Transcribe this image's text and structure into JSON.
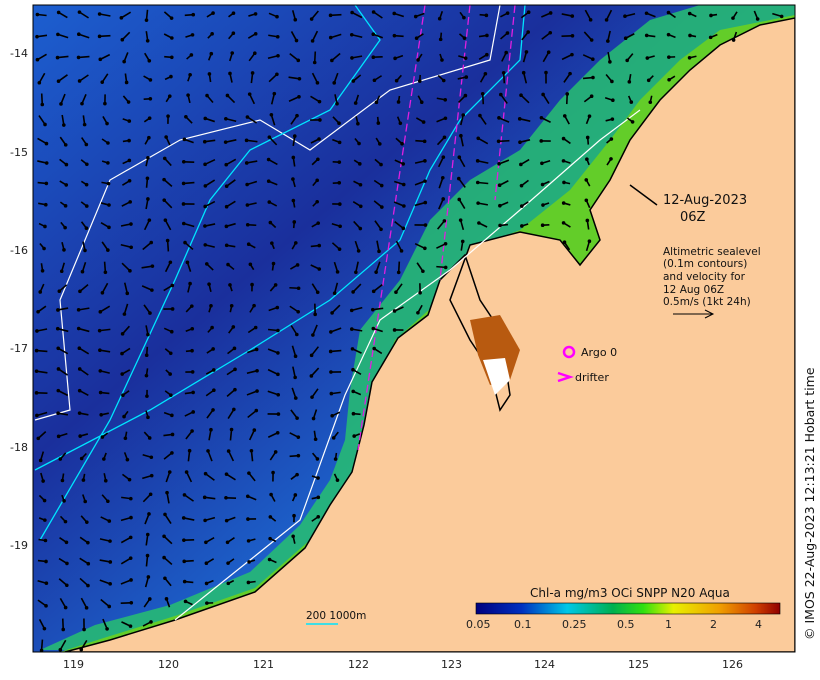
{
  "map": {
    "date_line1": "12-Aug-2023",
    "date_line2": "06Z",
    "info_lines": [
      "Altimetric sealevel",
      "(0.1m contours)",
      "and velocity for",
      "12 Aug 06Z",
      "0.5m/s (1kt 24h)"
    ],
    "legend_argo": "Argo 0",
    "legend_drifter": "drifter",
    "scale_label": "200  1000m",
    "credit": "© IMOS 22-Aug-2023 12:13:21 Hobart time",
    "lat_ticks": [
      "-14",
      "-15",
      "-16",
      "-17",
      "-18",
      "-19"
    ],
    "lon_ticks": [
      "119",
      "120",
      "121",
      "122",
      "123",
      "124",
      "125",
      "126"
    ],
    "colorbar": {
      "title": "Chl-a mg/m3 OCi SNPP N20 Aqua",
      "ticks": [
        "0.05",
        "0.1",
        "0.25",
        "0.5",
        "1",
        "2",
        "4"
      ]
    },
    "colors": {
      "land": "#fbcb9b",
      "argo": "#ff00ff",
      "contour": "#00e5ff",
      "isobath": "#ffffff"
    }
  }
}
